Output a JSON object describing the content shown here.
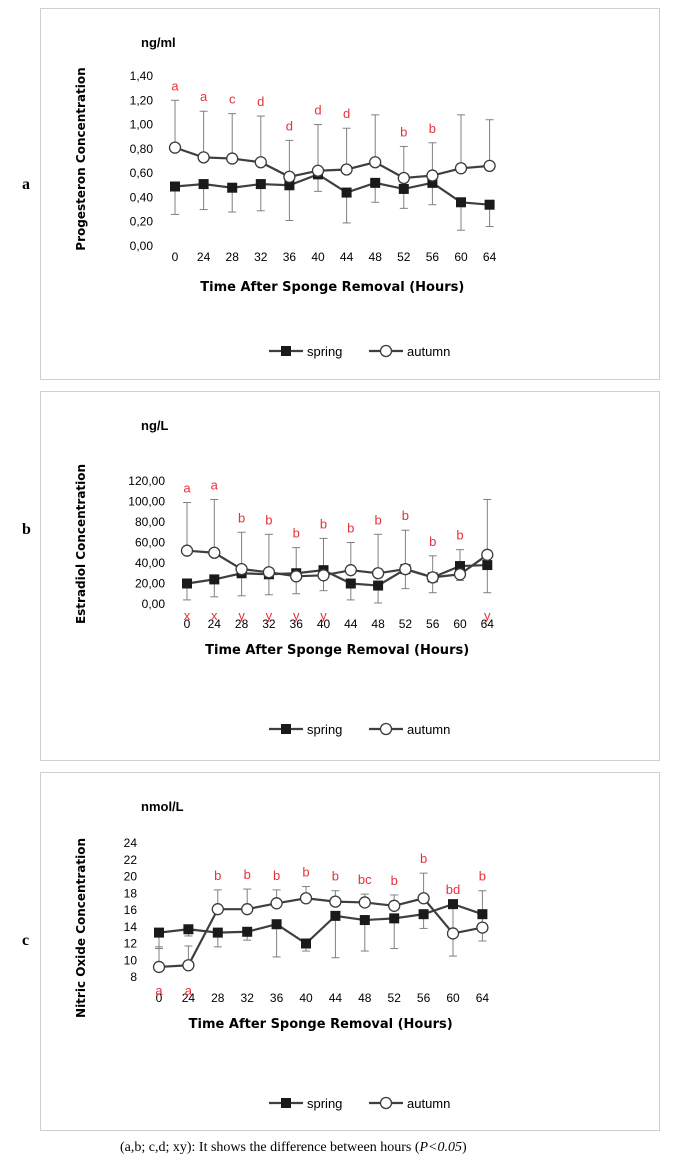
{
  "panel_letters": [
    "a",
    "b",
    "c"
  ],
  "caption": {
    "text": "(a,b; c,d; xy): It shows the difference between hours (",
    "p_value": "P<0.05",
    "close": ")"
  },
  "colors": {
    "line": "#3f3f3f",
    "error": "#808080",
    "sig": "#e8303a",
    "text": "#000000"
  },
  "chart_data": [
    {
      "type": "line",
      "unit": "ng/ml",
      "ylabel": "Progesteron Concentration",
      "xlabel": "Time After Sponge Removal (Hours)",
      "categories": [
        "0",
        "24",
        "28",
        "32",
        "36",
        "40",
        "44",
        "48",
        "52",
        "56",
        "60",
        "64"
      ],
      "y_ticks": [
        "0,00",
        "0,20",
        "0,40",
        "0,60",
        "0,80",
        "1,00",
        "1,20",
        "1,40"
      ],
      "ylim": [
        0,
        1.4
      ],
      "legend_position": "bottom-center",
      "series": [
        {
          "name": "spring",
          "marker": "filled-square",
          "values": [
            0.49,
            0.51,
            0.48,
            0.51,
            0.5,
            0.59,
            0.44,
            0.52,
            0.47,
            0.52,
            0.36,
            0.34
          ],
          "err_low": [
            0.23,
            0.21,
            0.2,
            0.22,
            0.29,
            0.14,
            0.25,
            0.16,
            0.16,
            0.18,
            0.23,
            0.18
          ]
        },
        {
          "name": "autumn",
          "marker": "open-circle",
          "values": [
            0.81,
            0.73,
            0.72,
            0.69,
            0.57,
            0.62,
            0.63,
            0.69,
            0.56,
            0.58,
            0.64,
            0.66
          ],
          "err_high": [
            0.39,
            0.38,
            0.37,
            0.38,
            0.3,
            0.38,
            0.34,
            0.39,
            0.26,
            0.27,
            0.44,
            0.38
          ]
        }
      ],
      "sig_top": [
        "a",
        "a",
        "c",
        "d",
        "d",
        "d",
        "d",
        "",
        "b",
        "b",
        "",
        ""
      ],
      "sig_bottom": [
        "",
        "",
        "",
        "",
        "",
        "",
        "",
        "",
        "",
        "",
        "",
        ""
      ]
    },
    {
      "type": "line",
      "unit": "ng/L",
      "ylabel": "Estradiol  Concentration",
      "xlabel": "Time After Sponge Removal (Hours)",
      "categories": [
        "0",
        "24",
        "28",
        "32",
        "36",
        "40",
        "44",
        "48",
        "52",
        "56",
        "60",
        "64"
      ],
      "y_ticks": [
        "0,00",
        "20,00",
        "40,00",
        "60,00",
        "80,00",
        "100,00",
        "120,00"
      ],
      "ylim": [
        0,
        120
      ],
      "legend_position": "bottom-center",
      "series": [
        {
          "name": "spring",
          "marker": "filled-square",
          "values": [
            20,
            24,
            30,
            29,
            30,
            33,
            20,
            18,
            34,
            26,
            37,
            38
          ],
          "err_low": [
            16,
            17,
            22,
            20,
            20,
            20,
            16,
            17,
            19,
            15,
            14,
            27
          ]
        },
        {
          "name": "autumn",
          "marker": "open-circle",
          "values": [
            52,
            50,
            34,
            31,
            27,
            28,
            33,
            30,
            34,
            26,
            29,
            48
          ],
          "err_high": [
            47,
            52,
            36,
            37,
            28,
            36,
            27,
            38,
            38,
            21,
            24,
            54
          ]
        }
      ],
      "sig_top": [
        "a",
        "a",
        "b",
        "b",
        "b",
        "b",
        "b",
        "b",
        "b",
        "b",
        "b",
        ""
      ],
      "sig_bottom": [
        "x",
        "x",
        "y",
        "y",
        "y",
        "y",
        "",
        "",
        "",
        "",
        "",
        "y"
      ]
    },
    {
      "type": "line",
      "unit": "nmol/L",
      "ylabel": "Nitric Oxide Concentration",
      "xlabel": "Time After Sponge Removal (Hours)",
      "categories": [
        "0",
        "24",
        "28",
        "32",
        "36",
        "40",
        "44",
        "48",
        "52",
        "56",
        "60",
        "64"
      ],
      "y_ticks": [
        "8",
        "10",
        "12",
        "14",
        "16",
        "18",
        "20",
        "22",
        "24"
      ],
      "ylim": [
        8,
        24
      ],
      "y_axis_min": 6.6,
      "legend_position": "bottom-center",
      "series": [
        {
          "name": "spring",
          "marker": "filled-square",
          "values": [
            13.3,
            13.7,
            13.3,
            13.4,
            14.3,
            12.0,
            15.3,
            14.8,
            15.0,
            15.5,
            16.7,
            15.5
          ],
          "err_low": [
            1.9,
            0.8,
            1.7,
            1.0,
            3.9,
            0.9,
            5.0,
            3.7,
            3.6,
            1.7,
            6.2,
            3.2
          ]
        },
        {
          "name": "autumn",
          "marker": "open-circle",
          "values": [
            9.2,
            9.4,
            16.1,
            16.1,
            16.8,
            17.4,
            17.0,
            16.9,
            16.5,
            17.4,
            13.2,
            13.9
          ],
          "err_high": [
            2.4,
            2.3,
            2.3,
            2.4,
            1.6,
            1.4,
            1.3,
            1.0,
            1.3,
            3.0,
            3.5,
            4.4
          ]
        }
      ],
      "sig_top": [
        "",
        "",
        "b",
        "b",
        "b",
        "b",
        "b",
        "bc",
        "b",
        "b",
        "bd",
        "b"
      ],
      "sig_bottom": [
        "a",
        "a",
        "",
        "",
        "",
        "",
        "",
        "",
        "",
        "",
        "",
        ""
      ]
    }
  ]
}
